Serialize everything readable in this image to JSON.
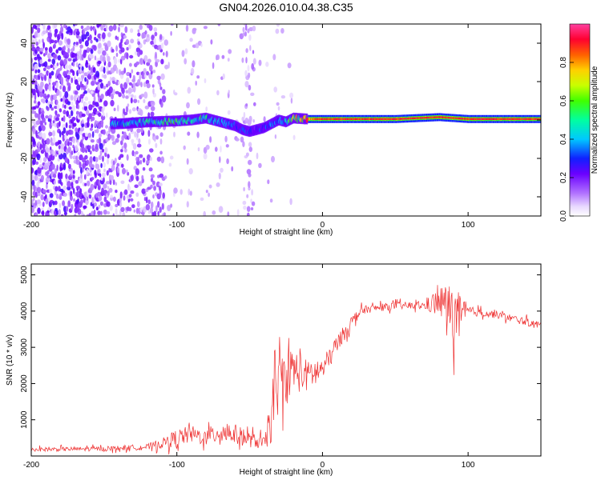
{
  "figure_title": "GN04.2026.010.04.38.C35",
  "chart_data": [
    {
      "type": "heatmap",
      "title": "GN04.2026.010.04.38.C35",
      "xlabel": "Height of straight line (km)",
      "ylabel": "Frequency (Hz)",
      "xlim": [
        -200,
        150
      ],
      "ylim": [
        -50,
        50
      ],
      "xticks": [
        -200,
        -100,
        0,
        100
      ],
      "yticks": [
        -40,
        -20,
        0,
        20,
        40
      ],
      "colorbar": {
        "label": "Normalized spectral amplitude",
        "range": [
          0,
          1
        ],
        "ticks": [
          0.0,
          0.2,
          0.4,
          0.6,
          0.8
        ],
        "tick_labels": [
          "0.0",
          "0.2",
          "0.4",
          "0.6",
          "0.8"
        ],
        "colors": [
          "#ffffff",
          "#c8a8f8",
          "#7a00e8",
          "#1010ff",
          "#00c8ff",
          "#00ff60",
          "#c8ff00",
          "#ffa000",
          "#ff0040",
          "#ff40a0"
        ]
      },
      "signal_trace": {
        "heights_km": [
          -140,
          -120,
          -100,
          -90,
          -80,
          -70,
          -60,
          -55,
          -50,
          -45,
          -40,
          -35,
          -30,
          -25,
          -20,
          -10,
          0,
          20,
          50,
          80,
          90,
          100,
          120,
          150
        ],
        "frequency_hz": [
          -2,
          -1,
          -0.5,
          0,
          1,
          -1,
          -3,
          -5,
          -6,
          -5,
          -4,
          -2,
          0,
          -1,
          1,
          0.5,
          0.5,
          0.5,
          0.5,
          1.5,
          1,
          0.5,
          0.5,
          0.5
        ],
        "amplitude": [
          0.4,
          0.45,
          0.5,
          0.45,
          0.45,
          0.35,
          0.3,
          0.3,
          0.25,
          0.25,
          0.3,
          0.3,
          0.35,
          0.4,
          0.6,
          0.8,
          0.9,
          0.9,
          0.9,
          0.9,
          0.9,
          0.9,
          0.9,
          0.9
        ]
      }
    },
    {
      "type": "line",
      "xlabel": "Height of straight line (km)",
      "ylabel": "SNR (10 * v/v)",
      "xlim": [
        -200,
        150
      ],
      "ylim": [
        0,
        5300
      ],
      "xticks": [
        -200,
        -100,
        0,
        100
      ],
      "yticks": [
        1000,
        2000,
        3000,
        4000,
        5000
      ],
      "color": "#ee3030",
      "envelope": {
        "x": [
          -200,
          -150,
          -120,
          -110,
          -100,
          -90,
          -80,
          -70,
          -60,
          -50,
          -40,
          -38,
          -35,
          -30,
          -25,
          -20,
          -15,
          -10,
          -5,
          0,
          5,
          10,
          15,
          20,
          25,
          30,
          40,
          50,
          60,
          70,
          75,
          80,
          85,
          90,
          95,
          100,
          110,
          120,
          130,
          140,
          150
        ],
        "y_mean": [
          180,
          200,
          250,
          350,
          500,
          600,
          500,
          700,
          600,
          450,
          350,
          500,
          1200,
          2000,
          2200,
          2400,
          2300,
          2200,
          2300,
          2400,
          2700,
          3100,
          3400,
          3700,
          3950,
          4050,
          4100,
          4150,
          4150,
          4150,
          4200,
          4250,
          4200,
          3900,
          3800,
          4000,
          3950,
          3900,
          3800,
          3700,
          3600
        ],
        "y_spread": [
          80,
          90,
          120,
          200,
          350,
          350,
          300,
          500,
          400,
          300,
          250,
          400,
          1200,
          1100,
          1000,
          900,
          800,
          600,
          600,
          500,
          400,
          350,
          300,
          250,
          200,
          150,
          150,
          150,
          150,
          150,
          400,
          600,
          800,
          1200,
          900,
          200,
          150,
          150,
          150,
          150,
          150
        ]
      }
    }
  ]
}
